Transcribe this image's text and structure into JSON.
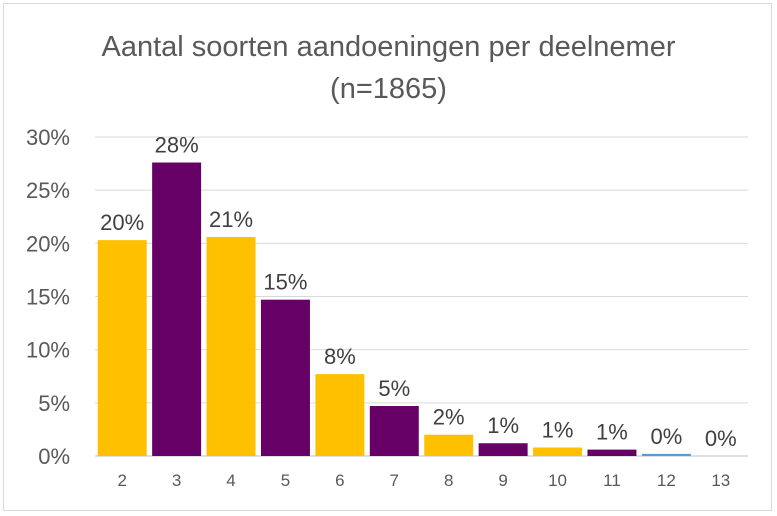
{
  "chart_data": {
    "type": "bar",
    "title": "Aantal soorten aandoeningen per deelnemer",
    "subtitle": "(n=1865)",
    "categories": [
      "2",
      "3",
      "4",
      "5",
      "6",
      "7",
      "8",
      "9",
      "10",
      "11",
      "12",
      "13"
    ],
    "values": [
      20.3,
      27.6,
      20.6,
      14.7,
      7.7,
      4.7,
      2.0,
      1.2,
      0.8,
      0.6,
      0.2,
      0.0
    ],
    "data_labels": [
      "20%",
      "28%",
      "21%",
      "15%",
      "8%",
      "5%",
      "2%",
      "1%",
      "1%",
      "1%",
      "0%",
      "0%"
    ],
    "yticks": [
      "0%",
      "5%",
      "10%",
      "15%",
      "20%",
      "25%",
      "30%"
    ],
    "ylim": [
      0,
      30
    ],
    "grid": true,
    "legend": "none",
    "colors": {
      "odd": "#FFC000",
      "even": "#660066",
      "last_small": "#5b9bd5",
      "grid": "#d9d9d9",
      "axis": "#bfbfbf"
    }
  }
}
